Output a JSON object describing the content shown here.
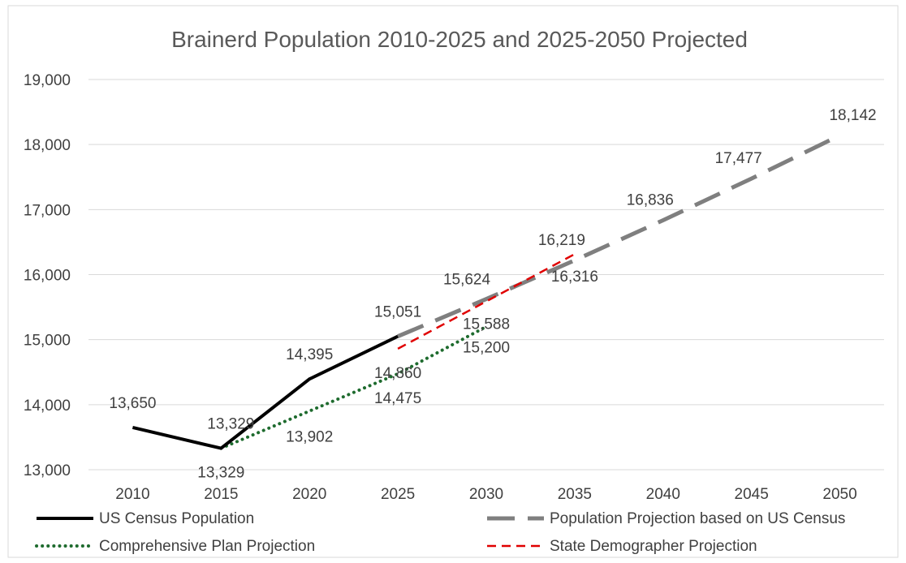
{
  "chart_data": {
    "type": "line",
    "title": "Brainerd Population 2010-2025 and  2025-2050 Projected",
    "x": [
      2010,
      2015,
      2020,
      2025,
      2030,
      2035,
      2040,
      2045,
      2050
    ],
    "xlim": [
      2010,
      2050
    ],
    "ylim": [
      13000,
      19000
    ],
    "y_ticks": [
      "13,000",
      "14,000",
      "15,000",
      "16,000",
      "17,000",
      "18,000",
      "19,000"
    ],
    "x_ticks": [
      "2010",
      "2015",
      "2020",
      "2025",
      "2030",
      "2035",
      "2040",
      "2045",
      "2050"
    ],
    "grid": true,
    "legend_position": "bottom",
    "series": [
      {
        "name": "US Census Population",
        "color": "#000000",
        "style": "solid",
        "points": [
          {
            "x": 2010,
            "y": 13650,
            "label": "13,650"
          },
          {
            "x": 2015,
            "y": 13329,
            "label": "13,329"
          },
          {
            "x": 2020,
            "y": 14395,
            "label": "14,395"
          },
          {
            "x": 2025,
            "y": 15051,
            "label": "15,051"
          }
        ]
      },
      {
        "name": "Population Projection based on US Census",
        "color": "#7f7f7f",
        "style": "long-dash",
        "points": [
          {
            "x": 2025,
            "y": 15051,
            "label": ""
          },
          {
            "x": 2030,
            "y": 15624,
            "label": "15,624"
          },
          {
            "x": 2035,
            "y": 16219,
            "label": "16,219"
          },
          {
            "x": 2040,
            "y": 16836,
            "label": "16,836"
          },
          {
            "x": 2045,
            "y": 17477,
            "label": "17,477"
          },
          {
            "x": 2050,
            "y": 18142,
            "label": "18,142"
          }
        ]
      },
      {
        "name": "Comprehensive Plan Projection",
        "color": "#1e6b2e",
        "style": "dotted",
        "points": [
          {
            "x": 2015,
            "y": 13329,
            "label": "13,329"
          },
          {
            "x": 2020,
            "y": 13902,
            "label": "13,902"
          },
          {
            "x": 2025,
            "y": 14475,
            "label": "14,475"
          },
          {
            "x": 2030,
            "y": 15200,
            "label": "15,200"
          }
        ]
      },
      {
        "name": "State Demographer Projection",
        "color": "#e00000",
        "style": "dash",
        "points": [
          {
            "x": 2025,
            "y": 14860,
            "label": "14,860"
          },
          {
            "x": 2030,
            "y": 15588,
            "label": "15,588"
          },
          {
            "x": 2035,
            "y": 16316,
            "label": "16,316"
          }
        ]
      }
    ]
  }
}
